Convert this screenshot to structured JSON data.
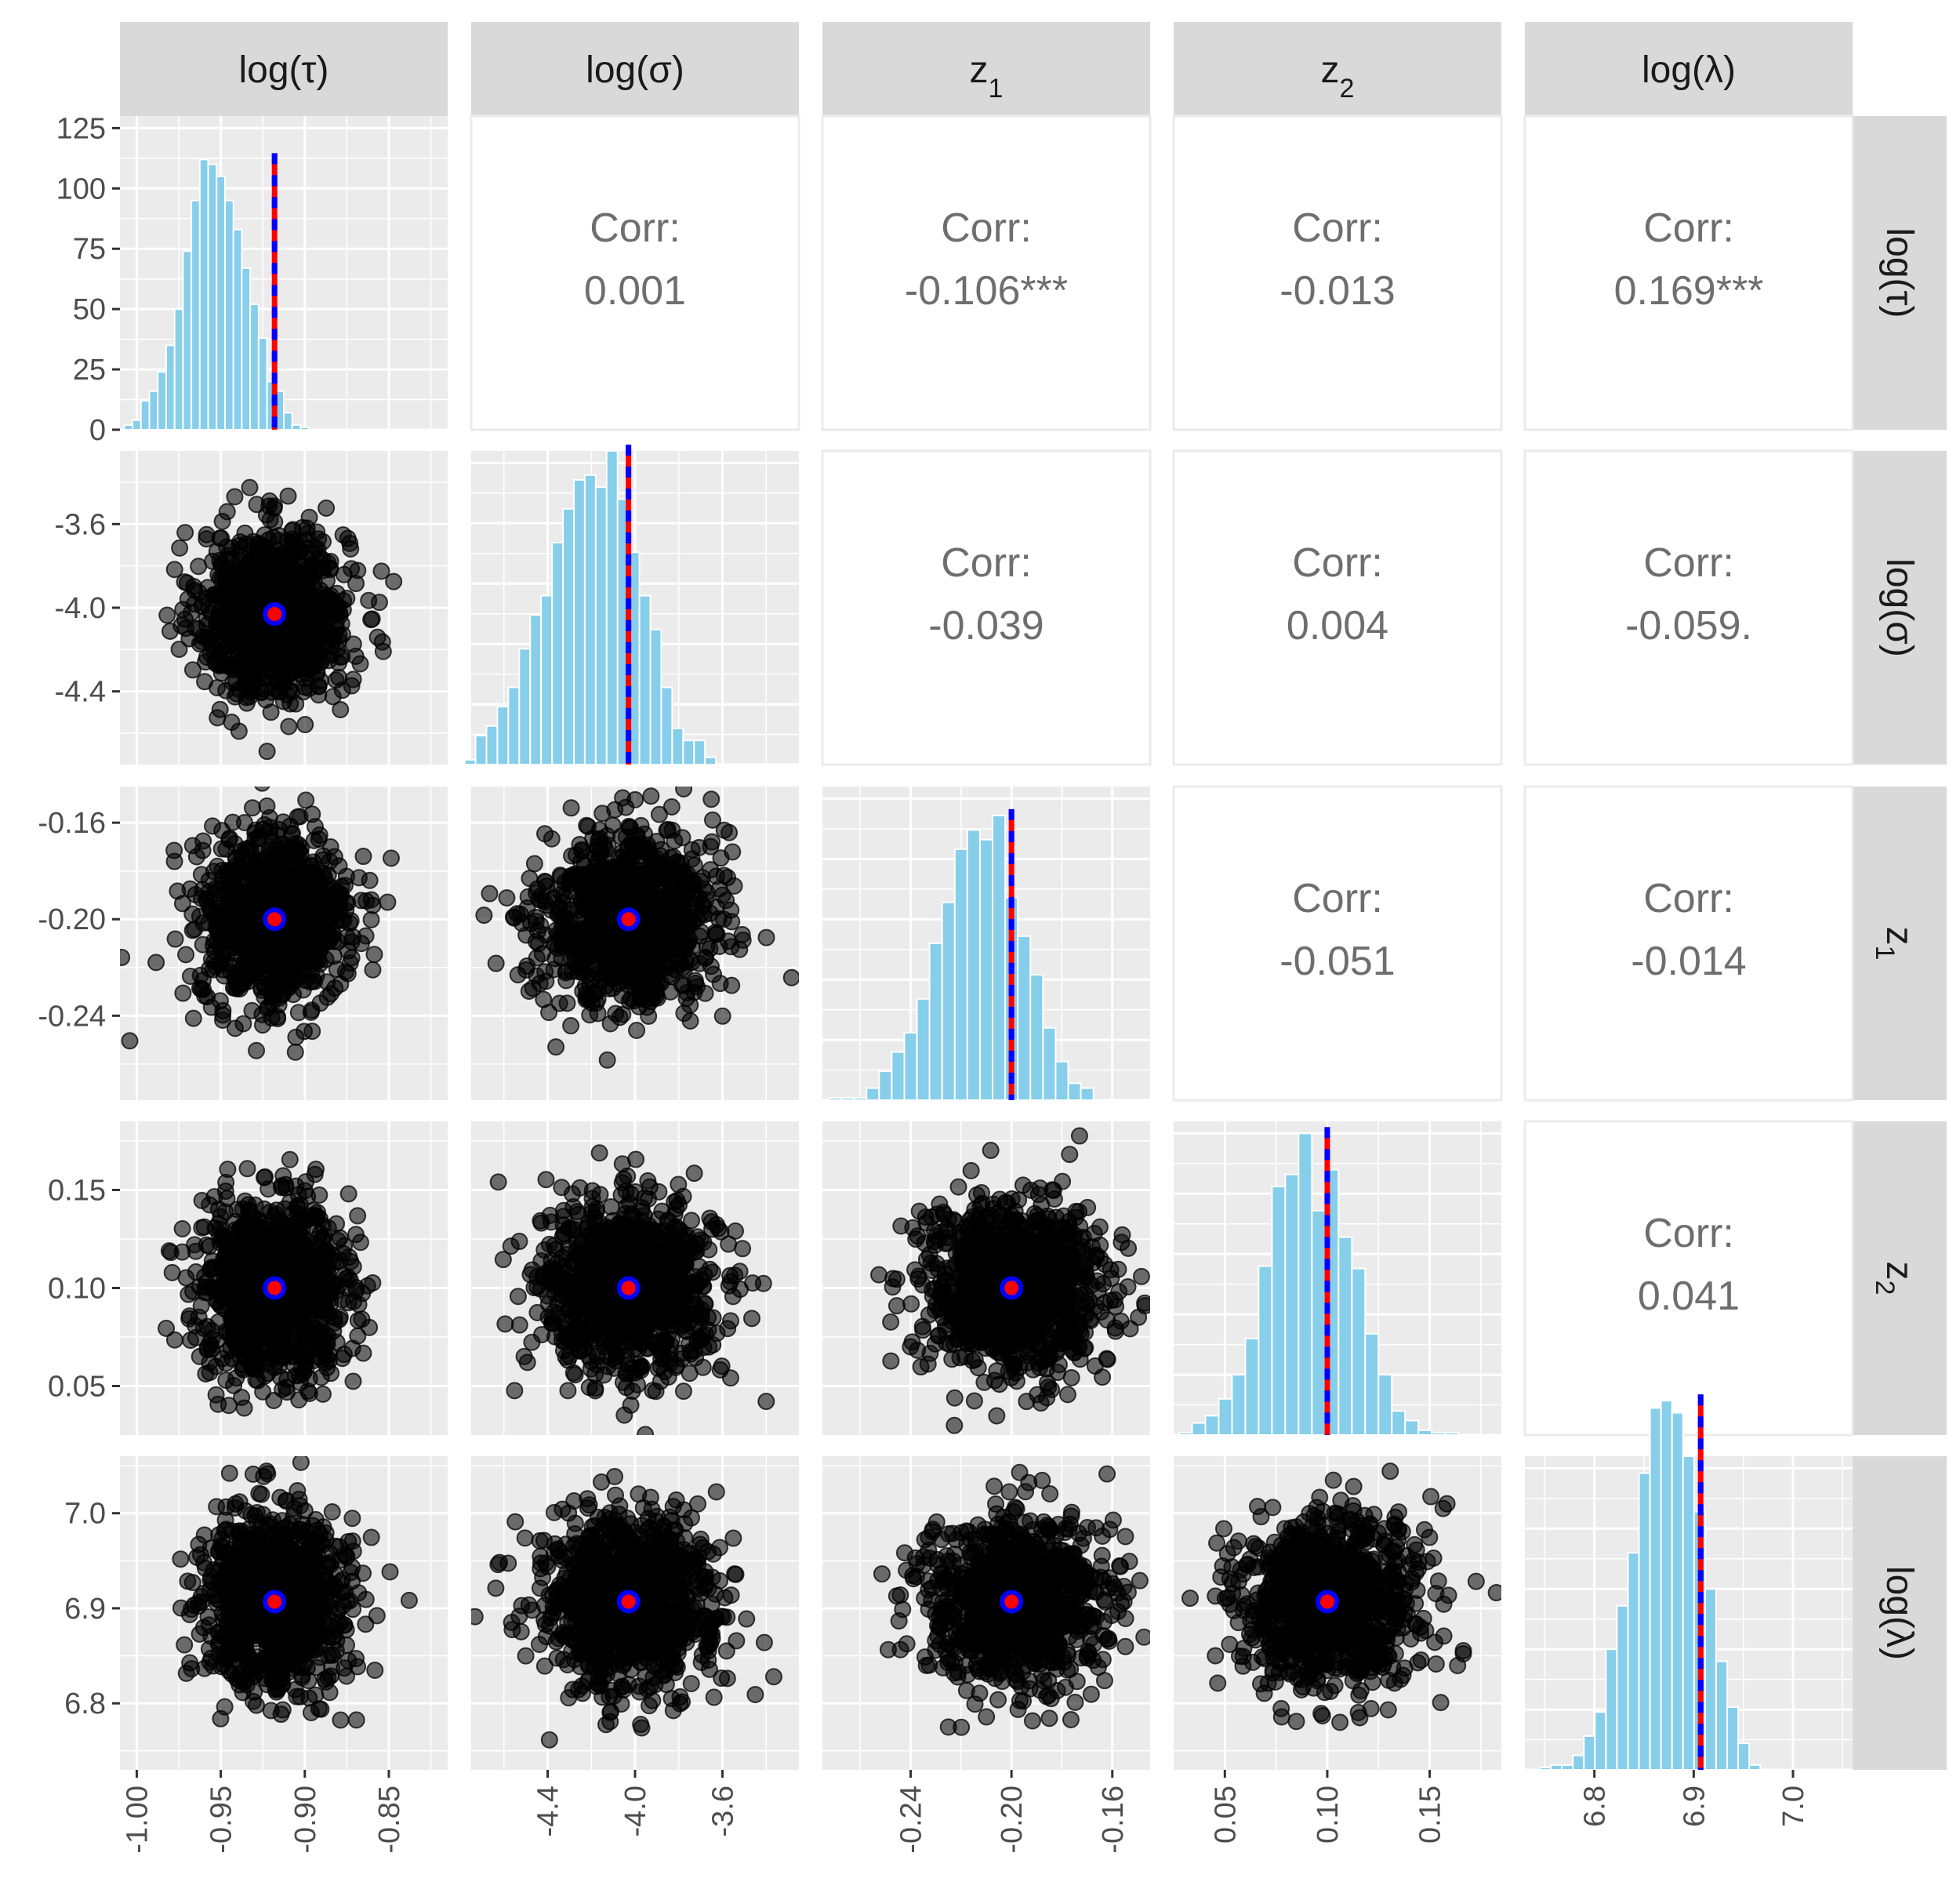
{
  "chart_data": {
    "type": "scatter",
    "variables": [
      {
        "key": "log_tau",
        "label": "log(τ)",
        "mean": -0.918,
        "sd": 0.022,
        "range": [
          -1.01,
          -0.815
        ],
        "ticks": [
          -1.0,
          -0.95,
          -0.9,
          -0.85
        ],
        "tick_labels": [
          "-1.00",
          "-0.95",
          "-0.90",
          "-0.85"
        ]
      },
      {
        "key": "log_sigma",
        "label": "log(σ)",
        "mean": -4.03,
        "sd": 0.2,
        "range": [
          -4.75,
          -3.25
        ],
        "ticks": [
          -4.4,
          -4.0,
          -3.6
        ],
        "tick_labels": [
          "-4.4",
          "-4.0",
          "-3.6"
        ]
      },
      {
        "key": "z1",
        "label": "z",
        "subscript": "1",
        "mean": -0.2,
        "sd": 0.018,
        "range": [
          -0.275,
          -0.145
        ],
        "ticks": [
          -0.24,
          -0.2,
          -0.16
        ],
        "tick_labels": [
          "-0.24",
          "-0.20",
          "-0.16"
        ]
      },
      {
        "key": "z2",
        "label": "z",
        "subscript": "2",
        "mean": 0.1,
        "sd": 0.022,
        "range": [
          0.025,
          0.185
        ],
        "ticks": [
          0.05,
          0.1,
          0.15
        ],
        "tick_labels": [
          "0.05",
          "0.10",
          "0.15"
        ]
      },
      {
        "key": "log_lambda",
        "label": "log(λ)",
        "mean": 6.907,
        "sd": 0.045,
        "range": [
          6.73,
          7.06
        ],
        "ticks": [
          6.8,
          6.9,
          7.0
        ],
        "tick_labels": [
          "6.8",
          "6.9",
          "7.0"
        ]
      }
    ],
    "histogram_count_axis": {
      "ticks": [
        0,
        25,
        50,
        75,
        100,
        125
      ],
      "tick_labels": [
        "0",
        "25",
        "50",
        "75",
        "100",
        "125"
      ],
      "max": 130
    },
    "correlation_label": "Corr:",
    "correlations": [
      {
        "row": 0,
        "col": 1,
        "value": "0.001"
      },
      {
        "row": 0,
        "col": 2,
        "value": "-0.106***"
      },
      {
        "row": 0,
        "col": 3,
        "value": "-0.013"
      },
      {
        "row": 0,
        "col": 4,
        "value": "0.169***"
      },
      {
        "row": 1,
        "col": 2,
        "value": "-0.039"
      },
      {
        "row": 1,
        "col": 3,
        "value": "0.004"
      },
      {
        "row": 1,
        "col": 4,
        "value": "-0.059."
      },
      {
        "row": 2,
        "col": 3,
        "value": "-0.051"
      },
      {
        "row": 2,
        "col": 4,
        "value": "-0.014"
      },
      {
        "row": 3,
        "col": 4,
        "value": "0.041"
      }
    ],
    "histograms": [
      {
        "var": "log_tau",
        "bin_width": 0.005,
        "start": -1.0075,
        "counts": [
          2,
          4,
          12,
          16,
          24,
          35,
          50,
          74,
          95,
          112,
          110,
          105,
          95,
          83,
          67,
          52,
          38,
          20,
          16,
          7,
          2,
          1
        ]
      },
      {
        "var": "log_sigma",
        "bin_width": 0.05,
        "start": -4.78,
        "counts": [
          2,
          12,
          16,
          24,
          32,
          48,
          62,
          70,
          92,
          106,
          118,
          120,
          115,
          130,
          110,
          88,
          70,
          56,
          32,
          15,
          10,
          10,
          3
        ]
      },
      {
        "var": "z1",
        "bin_width": 0.005,
        "start": -0.2725,
        "counts": [
          1,
          1,
          1,
          5,
          12,
          20,
          28,
          42,
          65,
          82,
          104,
          112,
          108,
          118,
          84,
          68,
          52,
          30,
          16,
          7,
          5
        ]
      },
      {
        "var": "z2",
        "bin_width": 0.0065,
        "start": 0.0275,
        "counts": [
          1,
          5,
          8,
          15,
          25,
          40,
          70,
          103,
          108,
          125,
          93,
          110,
          82,
          69,
          42,
          25,
          10,
          6,
          2,
          1,
          1
        ]
      },
      {
        "var": "log_lambda",
        "bin_width": 0.0111,
        "start": 6.745,
        "counts": [
          1,
          2,
          2,
          6,
          14,
          24,
          50,
          68,
          90,
          123,
          150,
          153,
          148,
          130,
          107,
          75,
          45,
          26,
          11,
          2
        ]
      }
    ],
    "reference_lines": {
      "colors": [
        "#ff0000",
        "#0000ff"
      ],
      "style": "dashed",
      "values": [
        -0.918,
        -4.03,
        -0.2,
        0.1,
        6.907
      ]
    },
    "center_point": {
      "fill": "#ff0000",
      "stroke": "#0000ff"
    },
    "points_per_panel": 1000,
    "colors": {
      "histogram_fill": "#87ceeb",
      "points": "#000000",
      "strip": "#d9d9d9",
      "panel": "#ebebeb"
    }
  }
}
